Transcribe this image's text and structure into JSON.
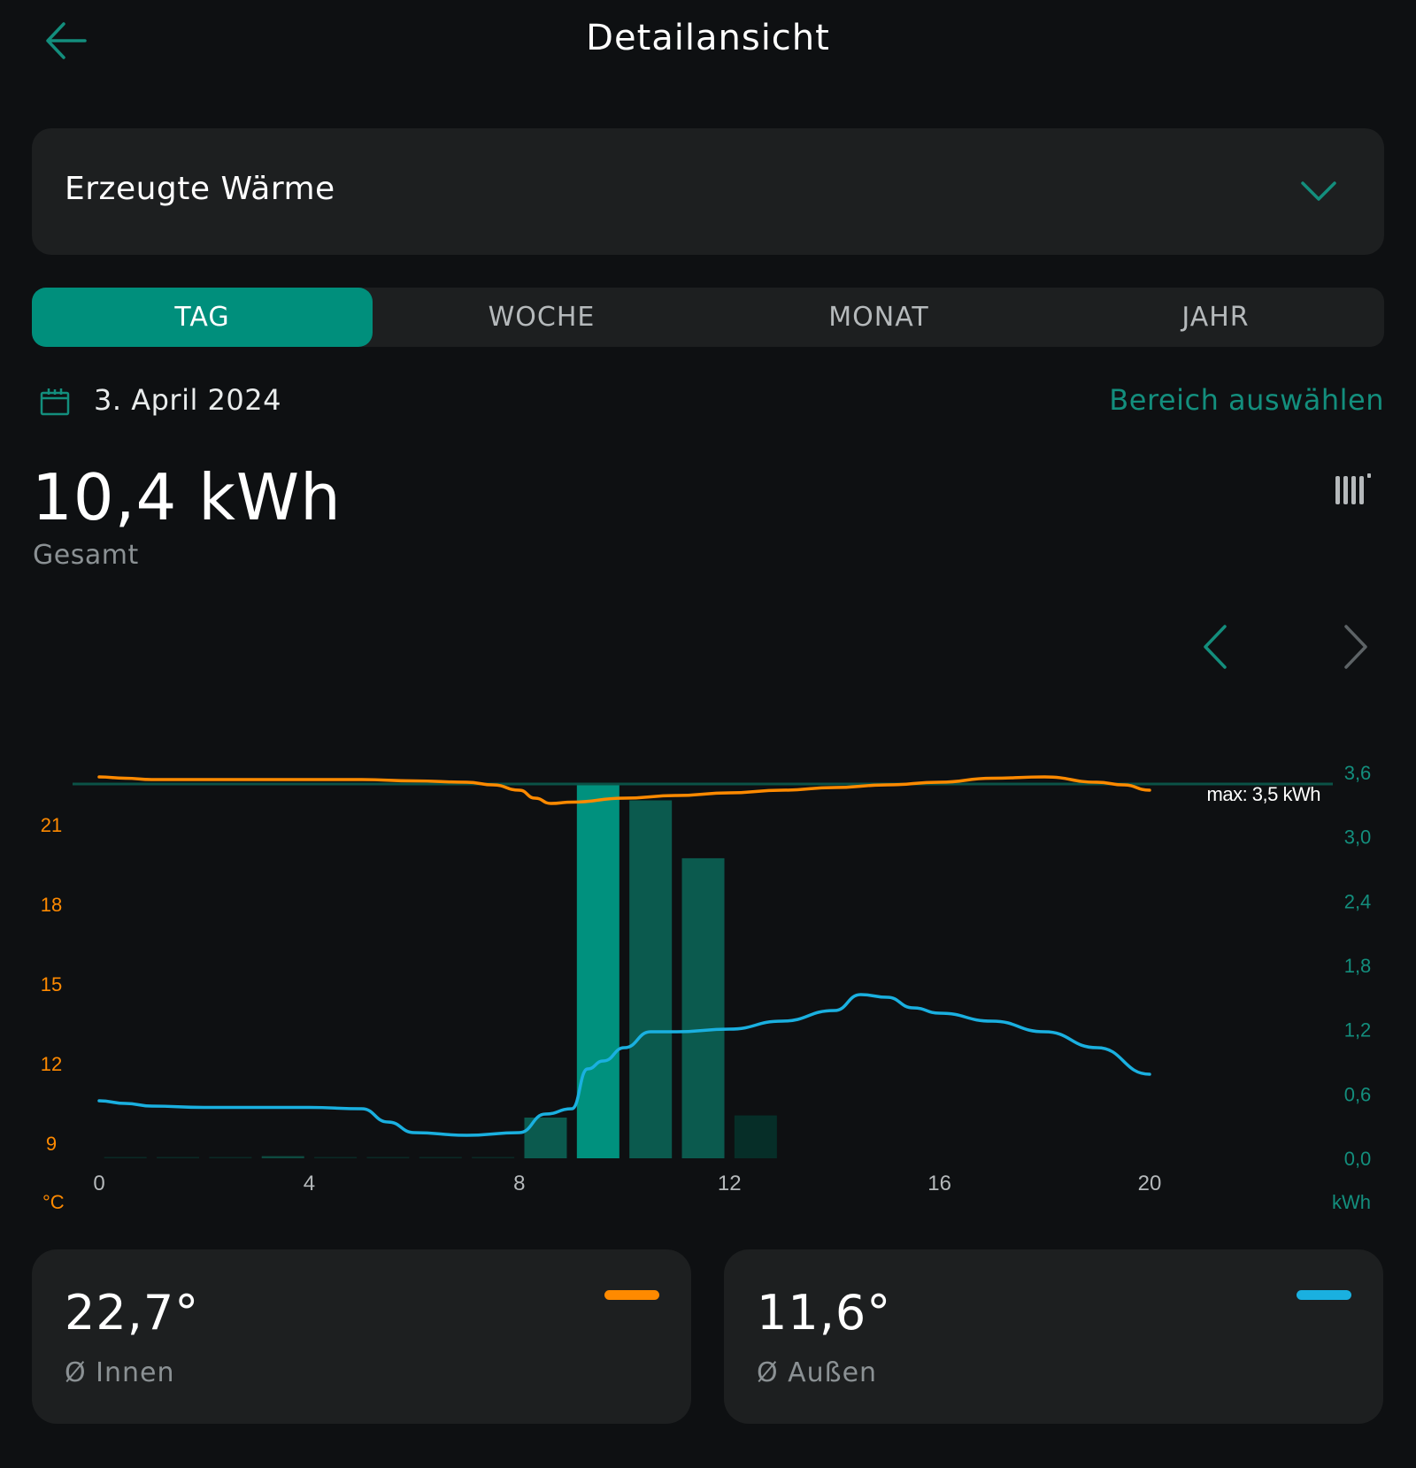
{
  "header": {
    "title": "Detailansicht"
  },
  "metric_select": {
    "value": "Erzeugte Wärme"
  },
  "tabs": [
    {
      "label": "TAG",
      "active": true
    },
    {
      "label": "WOCHE",
      "active": false
    },
    {
      "label": "MONAT",
      "active": false
    },
    {
      "label": "JAHR",
      "active": false
    }
  ],
  "date": {
    "label": "3. April 2024",
    "range_link": "Bereich auswählen"
  },
  "summary": {
    "value": "10,4 kWh",
    "label": "Gesamt"
  },
  "colors": {
    "accent": "#008f7c",
    "teal_text": "#138e7d",
    "indoor": "#ff8a00",
    "outdoor": "#1ab0e0",
    "background": "#0e1012",
    "card": "#1d1f20"
  },
  "cards": [
    {
      "value": "22,7°",
      "label": "Ø Innen",
      "color": "#ff8a00"
    },
    {
      "value": "11,6°",
      "label": "Ø Außen",
      "color": "#1ab0e0"
    }
  ],
  "chart_data": {
    "type": "bar",
    "x": [
      0,
      1,
      2,
      3,
      4,
      5,
      6,
      7,
      8,
      9,
      10,
      11,
      12
    ],
    "x_ticks": [
      "0",
      "4",
      "8",
      "12",
      "16",
      "20"
    ],
    "xlim": [
      0,
      20
    ],
    "y_left": {
      "unit": "°C",
      "ticks": [
        "9",
        "12",
        "15",
        "18",
        "21"
      ],
      "range": [
        8.4,
        23.0
      ]
    },
    "y_right": {
      "unit": "kWh",
      "ticks": [
        "0,0",
        "0,6",
        "1,2",
        "1,8",
        "2,4",
        "3,0",
        "3,6"
      ],
      "range": [
        0,
        3.6
      ]
    },
    "series": [
      {
        "type": "bar",
        "axis": "right",
        "values": [
          0.01,
          0.01,
          0.01,
          0.02,
          0.01,
          0.01,
          0.01,
          0.01,
          0.38,
          3.5,
          3.34,
          2.8,
          0.4
        ]
      },
      {
        "type": "line",
        "axis": "left",
        "color": "#ff8a00",
        "x": [
          0,
          0.5,
          1,
          2,
          3,
          4,
          5,
          6,
          7,
          7.5,
          8,
          8.3,
          8.6,
          9,
          10,
          11,
          12,
          13,
          14,
          15,
          16,
          17,
          18,
          19,
          19.5,
          20
        ],
        "y": [
          22.8,
          22.75,
          22.7,
          22.7,
          22.7,
          22.7,
          22.7,
          22.65,
          22.6,
          22.5,
          22.3,
          22.0,
          21.8,
          21.85,
          22.0,
          22.1,
          22.2,
          22.3,
          22.4,
          22.5,
          22.6,
          22.75,
          22.8,
          22.6,
          22.5,
          22.3
        ]
      },
      {
        "type": "line",
        "axis": "left",
        "color": "#1ab0e0",
        "x": [
          0,
          0.5,
          1,
          2,
          3,
          4,
          5,
          5.5,
          6,
          7,
          8,
          8.5,
          9,
          9.3,
          9.6,
          10,
          10.5,
          11,
          12,
          13,
          14,
          14.5,
          15,
          15.5,
          16,
          17,
          18,
          19,
          20
        ],
        "y": [
          10.6,
          10.5,
          10.4,
          10.35,
          10.35,
          10.35,
          10.3,
          9.8,
          9.4,
          9.3,
          9.4,
          10.1,
          10.3,
          11.8,
          12.1,
          12.6,
          13.2,
          13.2,
          13.3,
          13.6,
          14.0,
          14.6,
          14.5,
          14.1,
          13.9,
          13.6,
          13.2,
          12.6,
          11.6
        ]
      }
    ],
    "annotation": "max: 3,5 kWh",
    "max_value": 3.5
  }
}
